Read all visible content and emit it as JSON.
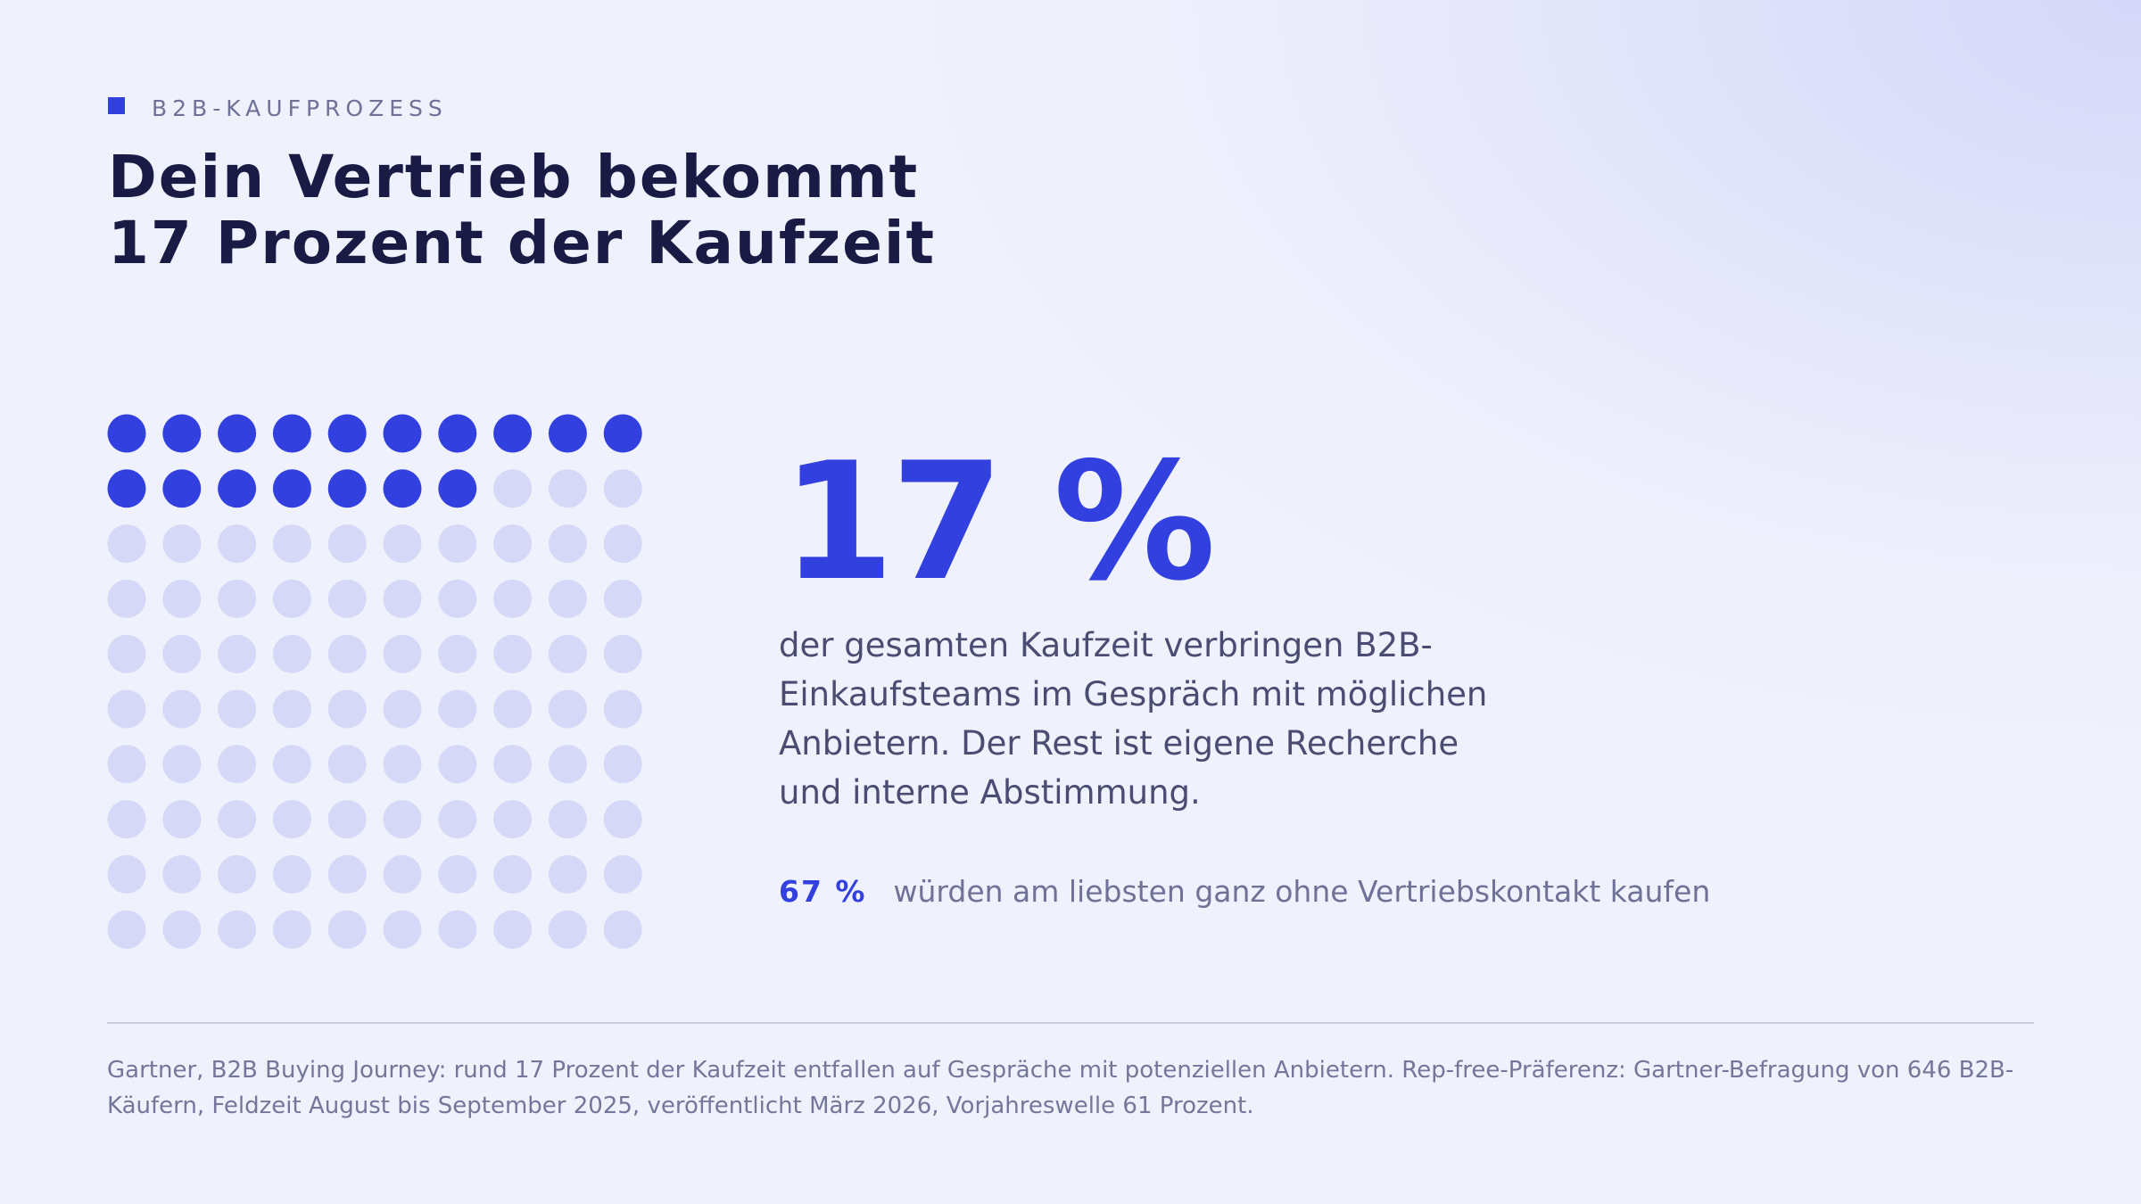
{
  "header": {
    "eyebrow": "B2B-KAUFPROZESS",
    "title_line1": "Dein Vertrieb bekommt",
    "title_line2": "17 Prozent der Kaufzeit"
  },
  "chart_data": {
    "type": "waffle",
    "total": 100,
    "filled": 17,
    "rows": 10,
    "columns": 10,
    "filled_color": "#3340e0",
    "empty_color": "#d5d8f6"
  },
  "stat": {
    "value": "17 %",
    "description": "der gesamten Kaufzeit verbringen B2B-Einkaufsteams im Gespräch mit möglichen Anbietern. Der Rest ist eigene Recherche und interne Abstimmung."
  },
  "secondary_stat": {
    "value": "67 %",
    "text": "würden am liebsten ganz ohne Vertriebskontakt kaufen"
  },
  "footnote": "Gartner, B2B Buying Journey: rund 17 Prozent der Kaufzeit entfallen auf Gespräche mit potenziellen Anbietern. Rep-free-Präferenz: Gartner-Befragung von 646 B2B-Käufern, Feldzeit August bis September 2025, veröffentlicht März 2026, Vorjahreswelle 61 Prozent.",
  "colors": {
    "accent": "#3340e0",
    "title": "#1a1b45",
    "muted": "#6f7197"
  }
}
